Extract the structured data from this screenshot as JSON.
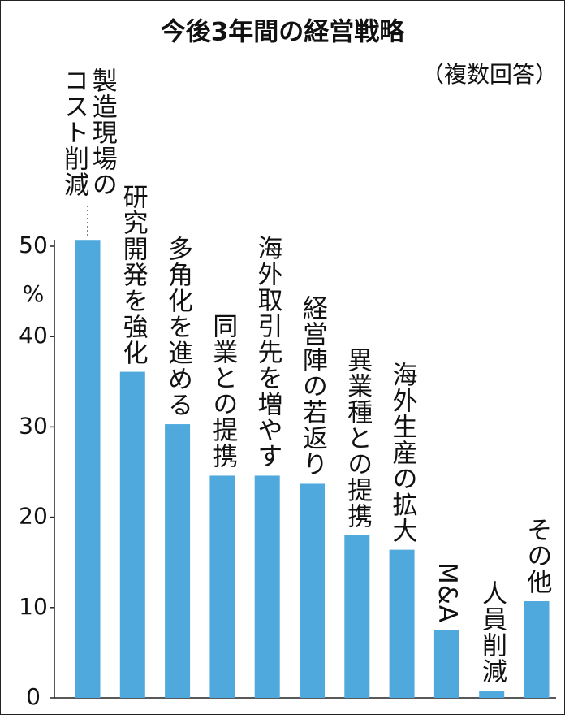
{
  "chart_data": {
    "type": "bar",
    "title": "今後3年間の経営戦略",
    "subtitle": "（複数回答）",
    "y_unit": "%",
    "categories": [
      "製造現場のコスト削減",
      "研究開発を強化",
      "多角化を進める",
      "同業との提携",
      "海外取引先を増やす",
      "経営陣の若返り",
      "異業種との提携",
      "海外生産の拡大",
      "M&A",
      "人員削減",
      "その他"
    ],
    "values": [
      50.7,
      36.1,
      30.3,
      24.6,
      24.6,
      23.7,
      18.0,
      16.4,
      7.5,
      0.8,
      10.7
    ],
    "color": "#4fa9dc",
    "ylim": [
      0,
      50
    ],
    "yticks": [
      0,
      10,
      20,
      30,
      40,
      50
    ],
    "grid": false
  }
}
